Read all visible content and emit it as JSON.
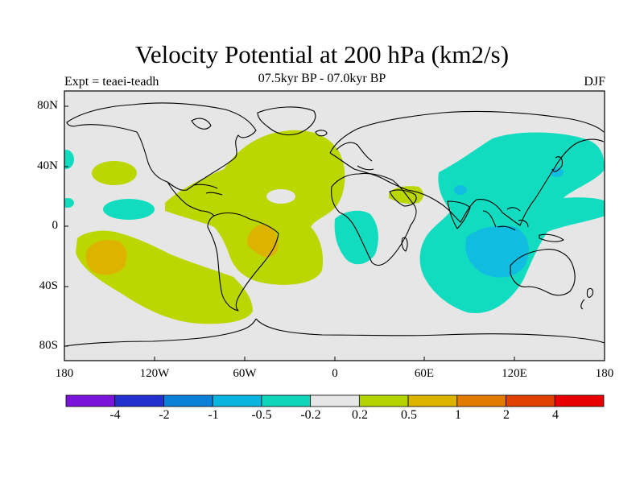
{
  "title": "Velocity Potential at 200 hPa (km2/s)",
  "subtitle": "07.5kyr BP - 07.0kyr BP",
  "experiment": "Expt = teaei-teadh",
  "season": "DJF",
  "lat_ticks": [
    "80N",
    "40N",
    "0",
    "40S",
    "80S"
  ],
  "lon_ticks": [
    "180",
    "120W",
    "60W",
    "0",
    "60E",
    "120E",
    "180"
  ],
  "colorbar": {
    "labels": [
      "-4",
      "-2",
      "-1",
      "-0.5",
      "-0.2",
      "0.2",
      "0.5",
      "1",
      "2",
      "4"
    ],
    "colors": [
      "#7a14d9",
      "#2230d0",
      "#0a7fd8",
      "#0ab4e0",
      "#0fd6b8",
      "#e6e6e6",
      "#b4d400",
      "#dcb400",
      "#e07a00",
      "#e04000",
      "#e80000"
    ]
  },
  "colors": {
    "ocean_background": "#e6e6e6",
    "positive_02_05": "#bcd600",
    "positive_05_1": "#dcb400",
    "negative_05_02": "#11dcbf",
    "negative_1_05": "#10bde0"
  }
}
